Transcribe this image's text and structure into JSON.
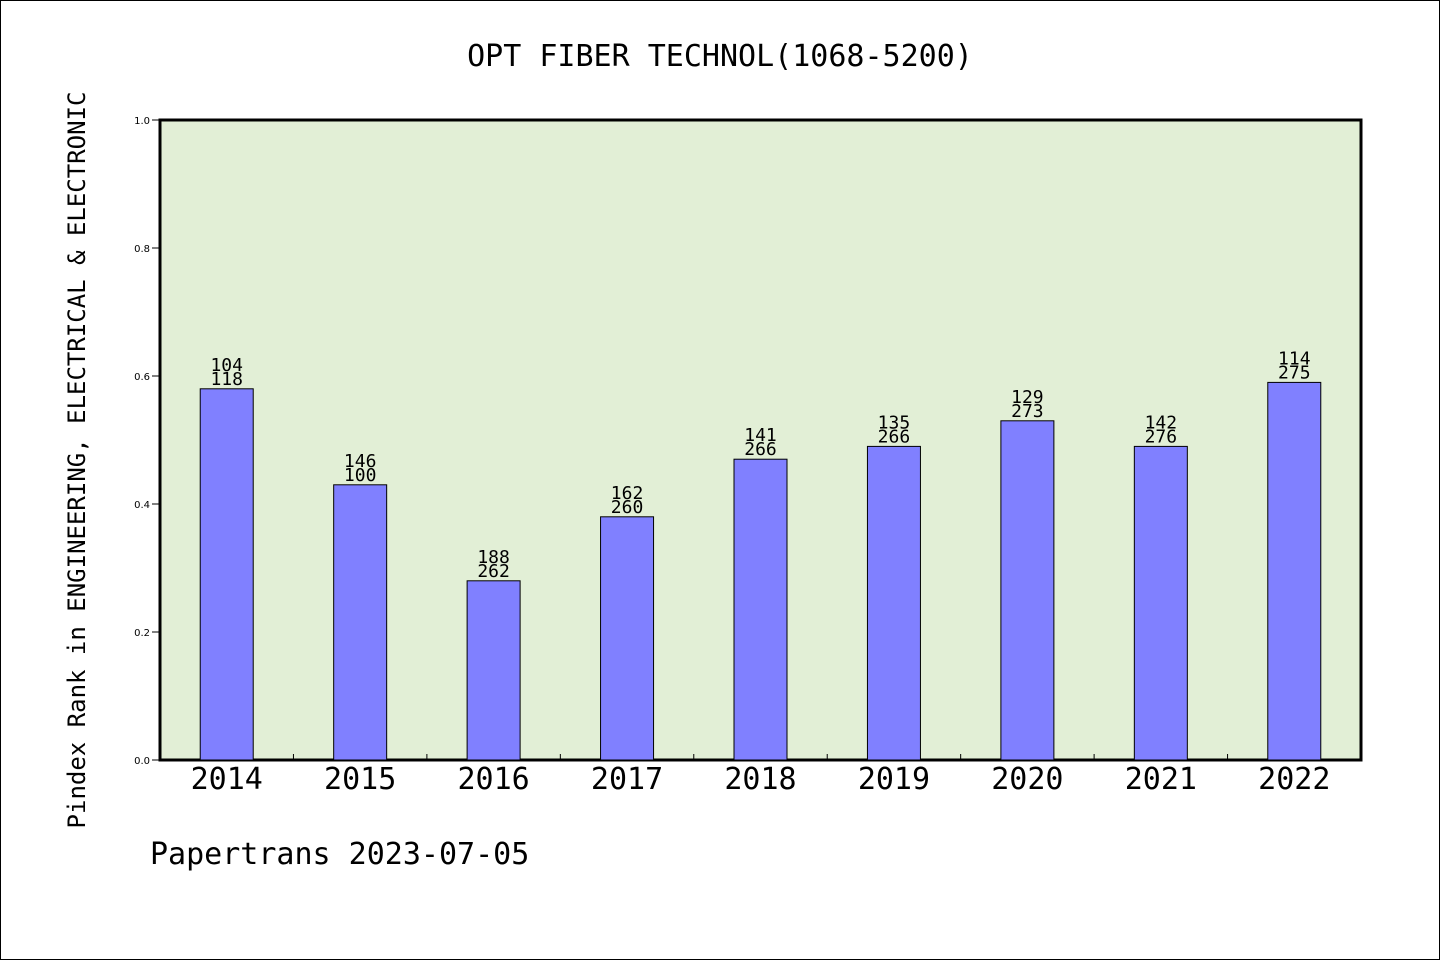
{
  "chart_data": {
    "type": "bar",
    "title": "OPT FIBER TECHNOL(1068-5200)",
    "ylabel": "Pindex Rank in ENGINEERING, ELECTRICAL & ELECTRONIC",
    "xlabel": "",
    "footer": "Papertrans 2023-07-05",
    "categories": [
      "2014",
      "2015",
      "2016",
      "2017",
      "2018",
      "2019",
      "2020",
      "2021",
      "2022"
    ],
    "values": [
      0.58,
      0.43,
      0.28,
      0.38,
      0.47,
      0.49,
      0.53,
      0.49,
      0.59
    ],
    "label_top": [
      "104",
      "146",
      "188",
      "162",
      "141",
      "135",
      "129",
      "142",
      "114"
    ],
    "label_bottom": [
      "118",
      "100",
      "262",
      "260",
      "266",
      "266",
      "273",
      "276",
      "275"
    ],
    "ylim": [
      0,
      1.0
    ],
    "yticks": [
      "0.0",
      "0.2",
      "0.4",
      "0.6",
      "0.8",
      "1.0"
    ],
    "grid": false,
    "colors": {
      "plot_background": "#e2efd6",
      "bar_fill": "#8080ff",
      "bar_stroke": "#000000",
      "axis": "#000000"
    }
  }
}
